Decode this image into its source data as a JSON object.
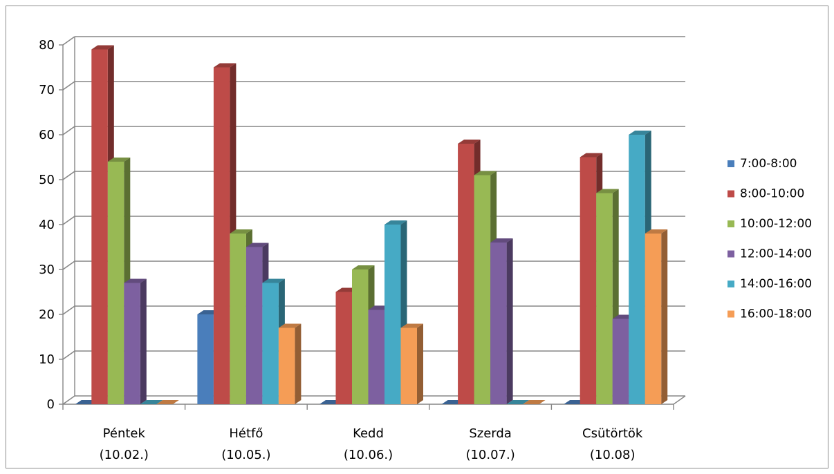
{
  "chart_data": {
    "type": "bar",
    "title": "",
    "xlabel": "",
    "ylabel": "",
    "ylim": [
      0,
      80
    ],
    "yticks": [
      0,
      10,
      20,
      30,
      40,
      50,
      60,
      70,
      80
    ],
    "grid": true,
    "legend_position": "right",
    "categories": [
      [
        "Péntek",
        "(10.02.)"
      ],
      [
        "Hétfő",
        "(10.05.)"
      ],
      [
        "Kedd",
        "(10.06.)"
      ],
      [
        "Szerda",
        "(10.07.)"
      ],
      [
        "Csütörtök",
        "(10.08)"
      ]
    ],
    "series": [
      {
        "name": "7:00-8:00",
        "color": "#4A7EBB",
        "values": [
          0,
          20,
          0,
          0,
          0
        ]
      },
      {
        "name": "8:00-10:00",
        "color": "#BE4B48",
        "values": [
          79,
          75,
          25,
          58,
          55
        ]
      },
      {
        "name": "10:00-12:00",
        "color": "#98B954",
        "values": [
          54,
          38,
          30,
          51,
          47
        ]
      },
      {
        "name": "12:00-14:00",
        "color": "#7D60A0",
        "values": [
          27,
          35,
          21,
          36,
          19
        ]
      },
      {
        "name": "14:00-16:00",
        "color": "#46AAC5",
        "values": [
          0,
          27,
          40,
          0,
          60
        ]
      },
      {
        "name": "16:00-18:00",
        "color": "#F59D56",
        "values": [
          0,
          17,
          17,
          0,
          38
        ]
      }
    ]
  }
}
